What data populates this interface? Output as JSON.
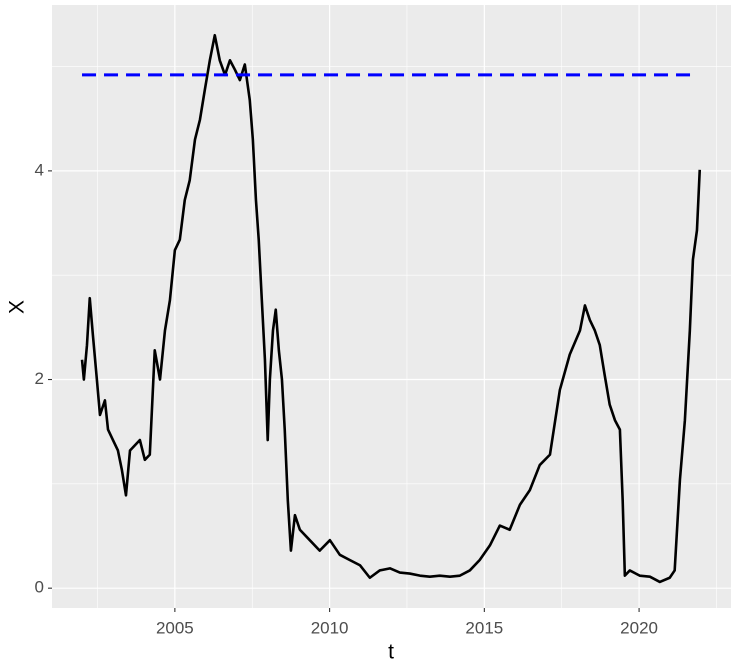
{
  "chart_data": {
    "type": "line",
    "x_label": "t",
    "y_label": "X",
    "xlim": [
      2001.03,
      2022.97
    ],
    "ylim": [
      -0.19,
      5.59
    ],
    "xticks": [
      2005,
      2010,
      2015,
      2020
    ],
    "yticks": [
      0,
      2,
      4
    ],
    "x_minor_grid": [
      2002.5,
      2007.5,
      2012.5,
      2017.5,
      2022.5
    ],
    "y_minor_grid": [
      1,
      3,
      5
    ],
    "grid": true,
    "series": [
      {
        "color": "#000000",
        "x": [
          2002.0,
          2002.06,
          2002.16,
          2002.25,
          2002.35,
          2002.48,
          2002.58,
          2002.74,
          2002.84,
          2003.0,
          2003.16,
          2003.29,
          2003.42,
          2003.55,
          2003.71,
          2003.87,
          2004.03,
          2004.19,
          2004.35,
          2004.52,
          2004.68,
          2004.84,
          2005.0,
          2005.16,
          2005.32,
          2005.48,
          2005.65,
          2005.81,
          2005.97,
          2006.13,
          2006.29,
          2006.45,
          2006.62,
          2006.78,
          2006.94,
          2007.1,
          2007.26,
          2007.42,
          2007.52,
          2007.62,
          2007.71,
          2007.81,
          2007.91,
          2008.0,
          2008.07,
          2008.17,
          2008.26,
          2008.36,
          2008.46,
          2008.55,
          2008.65,
          2008.75,
          2008.88,
          2009.04,
          2009.36,
          2009.68,
          2010.01,
          2010.33,
          2010.65,
          2010.98,
          2011.3,
          2011.62,
          2011.95,
          2012.27,
          2012.59,
          2012.92,
          2013.24,
          2013.56,
          2013.89,
          2014.21,
          2014.53,
          2014.85,
          2015.18,
          2015.5,
          2015.82,
          2016.15,
          2016.47,
          2016.79,
          2017.12,
          2017.44,
          2017.76,
          2018.09,
          2018.25,
          2018.41,
          2018.57,
          2018.73,
          2018.89,
          2019.05,
          2019.22,
          2019.38,
          2019.47,
          2019.54,
          2019.7,
          2020.02,
          2020.35,
          2020.67,
          2020.99,
          2021.15,
          2021.32,
          2021.48,
          2021.64,
          2021.74,
          2021.87,
          2021.96
        ],
        "values": [
          2.19,
          2.0,
          2.33,
          2.78,
          2.43,
          2.0,
          1.66,
          1.8,
          1.52,
          1.42,
          1.32,
          1.13,
          0.89,
          1.32,
          1.37,
          1.42,
          1.23,
          1.28,
          2.28,
          2.0,
          2.47,
          2.76,
          3.24,
          3.34,
          3.72,
          3.91,
          4.3,
          4.49,
          4.78,
          5.06,
          5.3,
          5.06,
          4.92,
          5.06,
          4.97,
          4.87,
          5.02,
          4.68,
          4.3,
          3.72,
          3.34,
          2.76,
          2.19,
          1.42,
          2.0,
          2.47,
          2.67,
          2.28,
          2.0,
          1.52,
          0.84,
          0.36,
          0.7,
          0.56,
          0.46,
          0.36,
          0.46,
          0.32,
          0.27,
          0.22,
          0.1,
          0.17,
          0.19,
          0.15,
          0.14,
          0.12,
          0.11,
          0.12,
          0.11,
          0.12,
          0.17,
          0.27,
          0.41,
          0.6,
          0.56,
          0.8,
          0.94,
          1.18,
          1.28,
          1.9,
          2.24,
          2.47,
          2.71,
          2.57,
          2.47,
          2.33,
          2.04,
          1.76,
          1.61,
          1.52,
          0.84,
          0.12,
          0.17,
          0.12,
          0.11,
          0.06,
          0.1,
          0.17,
          1.04,
          1.61,
          2.47,
          3.15,
          3.43,
          4.01
        ]
      }
    ],
    "hline": {
      "y": 4.92,
      "x": [
        2002.0,
        2021.8
      ],
      "color": "#0000ff",
      "dashed": true
    }
  }
}
